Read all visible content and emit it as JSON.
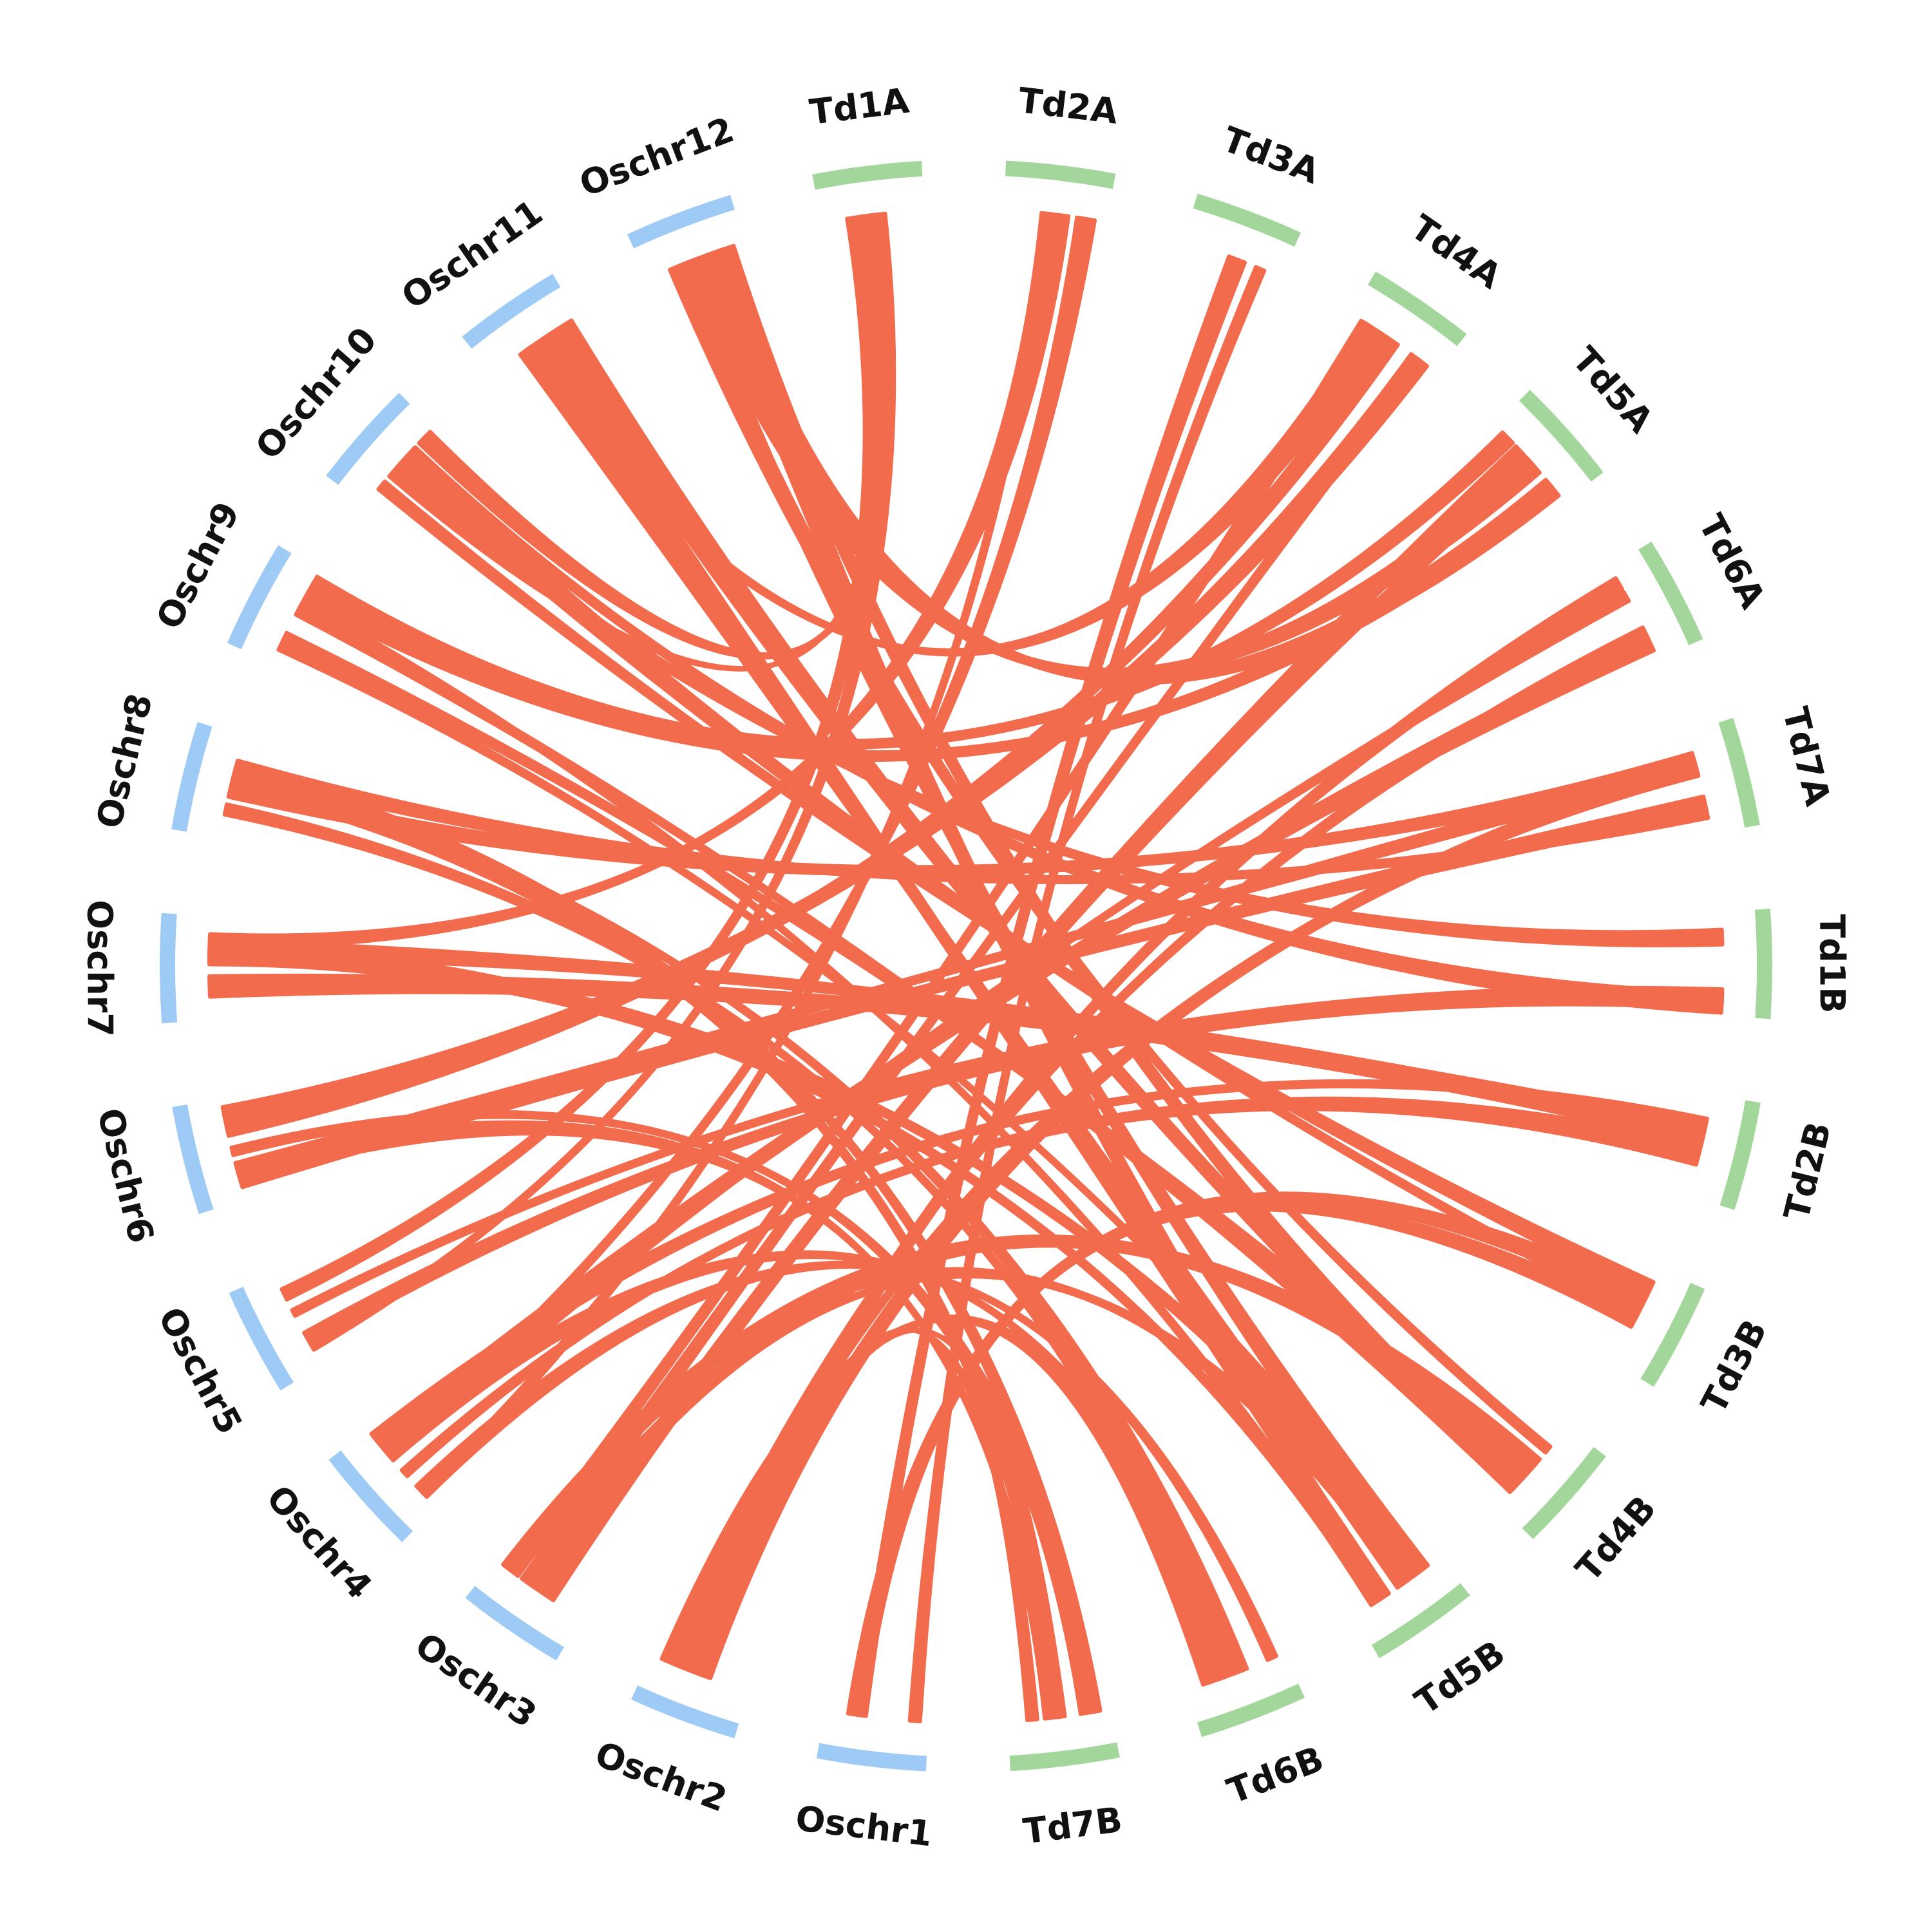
{
  "colors": {
    "rice": "#9ecbf5",
    "wheat": "#a3d69a",
    "link": "#f26b4d",
    "label": "#111111"
  },
  "chromosomes": [
    {
      "id": "Td1A",
      "group": "wheat"
    },
    {
      "id": "Td2A",
      "group": "wheat"
    },
    {
      "id": "Td3A",
      "group": "wheat"
    },
    {
      "id": "Td4A",
      "group": "wheat"
    },
    {
      "id": "Td5A",
      "group": "wheat"
    },
    {
      "id": "Td6A",
      "group": "wheat"
    },
    {
      "id": "Td7A",
      "group": "wheat"
    },
    {
      "id": "Td1B",
      "group": "wheat"
    },
    {
      "id": "Td2B",
      "group": "wheat"
    },
    {
      "id": "Td3B",
      "group": "wheat"
    },
    {
      "id": "Td4B",
      "group": "wheat"
    },
    {
      "id": "Td5B",
      "group": "wheat"
    },
    {
      "id": "Td6B",
      "group": "wheat"
    },
    {
      "id": "Td7B",
      "group": "wheat"
    },
    {
      "id": "Oschr1",
      "group": "rice"
    },
    {
      "id": "Oschr2",
      "group": "rice"
    },
    {
      "id": "Oschr3",
      "group": "rice"
    },
    {
      "id": "Oschr4",
      "group": "rice"
    },
    {
      "id": "Oschr5",
      "group": "rice"
    },
    {
      "id": "Oschr6",
      "group": "rice"
    },
    {
      "id": "Oschr7",
      "group": "rice"
    },
    {
      "id": "Oschr8",
      "group": "rice"
    },
    {
      "id": "Oschr9",
      "group": "rice"
    },
    {
      "id": "Oschr10",
      "group": "rice"
    },
    {
      "id": "Oschr11",
      "group": "rice"
    },
    {
      "id": "Oschr12",
      "group": "rice"
    }
  ],
  "links": [
    [
      "Oschr1",
      "Td3A"
    ],
    [
      "Oschr1",
      "Td3B"
    ],
    [
      "Oschr2",
      "Td6A"
    ],
    [
      "Oschr2",
      "Td6B"
    ],
    [
      "Oschr2",
      "Td7A"
    ],
    [
      "Oschr2",
      "Td7B"
    ],
    [
      "Oschr3",
      "Td4A"
    ],
    [
      "Oschr3",
      "Td5A"
    ],
    [
      "Oschr3",
      "Td4B"
    ],
    [
      "Oschr3",
      "Td5B"
    ],
    [
      "Oschr4",
      "Td2A"
    ],
    [
      "Oschr4",
      "Td2B"
    ],
    [
      "Oschr4",
      "Td6A"
    ],
    [
      "Oschr4",
      "Td6B"
    ],
    [
      "Oschr5",
      "Td1A"
    ],
    [
      "Oschr5",
      "Td1B"
    ],
    [
      "Oschr6",
      "Td7A"
    ],
    [
      "Oschr6",
      "Td7B"
    ],
    [
      "Oschr6",
      "Td4A"
    ],
    [
      "Oschr7",
      "Td2A"
    ],
    [
      "Oschr7",
      "Td2B"
    ],
    [
      "Oschr7",
      "Td5B"
    ],
    [
      "Oschr8",
      "Td7A"
    ],
    [
      "Oschr8",
      "Td7B"
    ],
    [
      "Oschr8",
      "Td6B"
    ],
    [
      "Oschr9",
      "Td5A"
    ],
    [
      "Oschr9",
      "Td5B"
    ],
    [
      "Oschr9",
      "Td4B"
    ],
    [
      "Oschr10",
      "Td1A"
    ],
    [
      "Oschr10",
      "Td1B"
    ],
    [
      "Oschr10",
      "Td3B"
    ],
    [
      "Oschr11",
      "Td4A"
    ],
    [
      "Oschr11",
      "Td4B"
    ],
    [
      "Oschr11",
      "Td5B"
    ],
    [
      "Oschr12",
      "Td5A"
    ],
    [
      "Oschr12",
      "Td5B"
    ],
    [
      "Oschr12",
      "Td4B"
    ]
  ]
}
